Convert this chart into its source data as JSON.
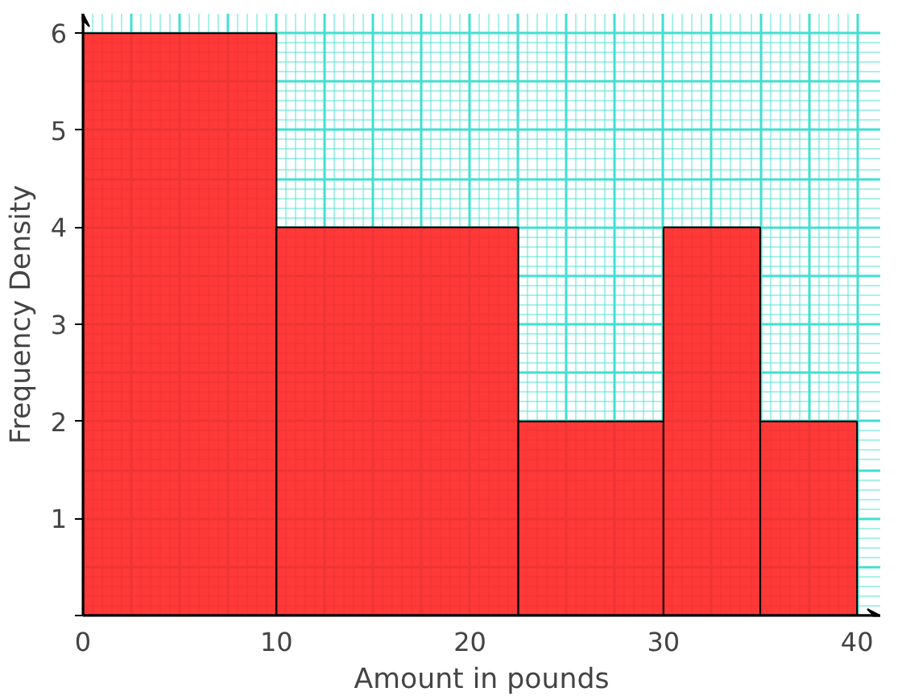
{
  "chart_data": {
    "type": "histogram",
    "xlabel": "Amount in pounds",
    "ylabel": "Frequency Density",
    "bins": [
      0,
      10,
      22.5,
      30,
      35,
      40
    ],
    "values": [
      6,
      4,
      2,
      4,
      2
    ],
    "color": "#ff2222",
    "xlim": [
      0,
      41.2
    ],
    "ylim": [
      0,
      6.2
    ],
    "xticks": [
      0,
      10,
      20,
      30,
      40
    ],
    "yticks": [
      {
        "value": 0,
        "label": null
      },
      1,
      2,
      3,
      4,
      5,
      6
    ],
    "grid": true
  }
}
